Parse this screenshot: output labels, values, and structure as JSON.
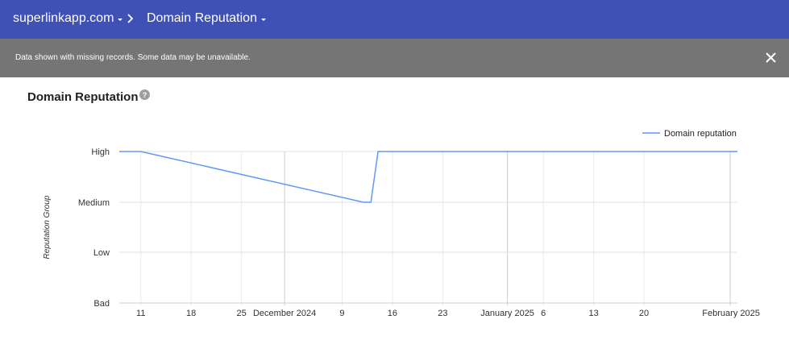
{
  "header": {
    "domain_label": "superlinkapp.com",
    "page_label": "Domain Reputation",
    "bg_color": "#3f51b5"
  },
  "banner": {
    "message": "Data shown with missing records. Some data may be unavailable.",
    "close_icon": "close-icon",
    "bg_color": "#757575"
  },
  "section": {
    "title": "Domain Reputation",
    "help_icon": "help-circle-icon"
  },
  "chart_data": {
    "type": "line",
    "title": "",
    "xlabel": "",
    "ylabel": "Reputation Group",
    "y_categories": [
      "Bad",
      "Low",
      "Medium",
      "High"
    ],
    "x_ticks": [
      "11",
      "18",
      "25",
      "December 2024",
      "9",
      "16",
      "23",
      "January 2025",
      "6",
      "13",
      "20",
      "February 2025"
    ],
    "x_range": [
      "2024-11-08",
      "2025-02-02"
    ],
    "legend": "top-right",
    "grid": true,
    "series": [
      {
        "name": "Domain reputation",
        "color": "#6199f3",
        "points": [
          {
            "x": "2024-11-08",
            "y": "High"
          },
          {
            "x": "2024-11-11",
            "y": "High"
          },
          {
            "x": "2024-12-12",
            "y": "Medium"
          },
          {
            "x": "2024-12-13",
            "y": "Medium"
          },
          {
            "x": "2024-12-14",
            "y": "High"
          },
          {
            "x": "2025-02-02",
            "y": "High"
          }
        ]
      }
    ]
  }
}
